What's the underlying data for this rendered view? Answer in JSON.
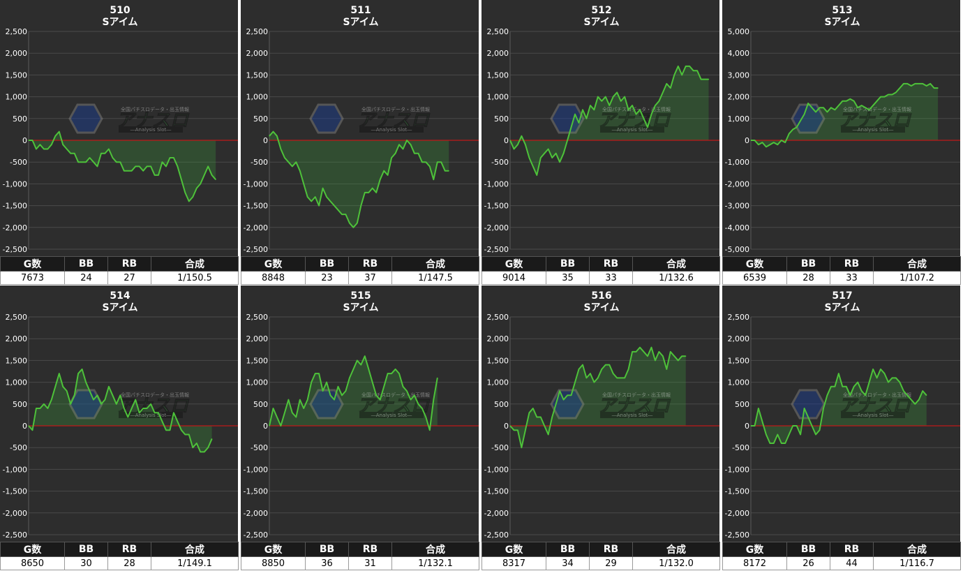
{
  "colors": {
    "panel_bg": "#2d2d2d",
    "grid": "#4a4a4a",
    "line": "#4ec23a",
    "fill": "rgba(60,160,60,0.28)",
    "zero_line": "#c01818",
    "header_bg": "#1a1a1a"
  },
  "headers": [
    "G数",
    "BB",
    "RB",
    "合成"
  ],
  "watermark": {
    "logo": "アナスロ",
    "tagline": "全国パチスロデータ・出玉情報",
    "sub": "―Analysis Slot―"
  },
  "chart_data": [
    {
      "type": "line",
      "title": "510",
      "subtitle": "Sアイム",
      "ylim": [
        -2500,
        2500
      ],
      "yticks": [
        "2,500",
        "2,000",
        "1,500",
        "1,000",
        "500",
        "0",
        "-500",
        "-1,000",
        "-1,500",
        "-2,000",
        "-2,500"
      ],
      "stats": {
        "g": "7673",
        "bb": "24",
        "rb": "27",
        "synth": "1/150.5"
      },
      "values": [
        0,
        0,
        -200,
        -100,
        -200,
        -200,
        -100,
        100,
        200,
        -100,
        -200,
        -300,
        -300,
        -500,
        -500,
        -500,
        -400,
        -500,
        -600,
        -300,
        -300,
        -200,
        -400,
        -500,
        -500,
        -700,
        -700,
        -700,
        -600,
        -600,
        -700,
        -600,
        -600,
        -800,
        -800,
        -500,
        -600,
        -400,
        -400,
        -600,
        -900,
        -1200,
        -1400,
        -1300,
        -1100,
        -1000,
        -800,
        -600,
        -800,
        -900
      ]
    },
    {
      "type": "line",
      "title": "511",
      "subtitle": "Sアイム",
      "ylim": [
        -2500,
        2500
      ],
      "yticks": [
        "2,500",
        "2,000",
        "1,500",
        "1,000",
        "500",
        "0",
        "-500",
        "-1,000",
        "-1,500",
        "-2,000",
        "-2,500"
      ],
      "stats": {
        "g": "8848",
        "bb": "23",
        "rb": "37",
        "synth": "1/147.5"
      },
      "values": [
        100,
        200,
        100,
        -200,
        -400,
        -500,
        -600,
        -500,
        -700,
        -1000,
        -1300,
        -1400,
        -1300,
        -1500,
        -1100,
        -1300,
        -1400,
        -1500,
        -1600,
        -1700,
        -1700,
        -1900,
        -2000,
        -1900,
        -1500,
        -1200,
        -1200,
        -1100,
        -1200,
        -900,
        -700,
        -800,
        -400,
        -300,
        -100,
        -200,
        0,
        -100,
        -300,
        -300,
        -500,
        -500,
        -600,
        -900,
        -500,
        -500,
        -700,
        -700
      ]
    },
    {
      "type": "line",
      "title": "512",
      "subtitle": "Sアイム",
      "ylim": [
        -2500,
        2500
      ],
      "yticks": [
        "2,500",
        "2,000",
        "1,500",
        "1,000",
        "500",
        "0",
        "-500",
        "-1,000",
        "-1,500",
        "-2,000",
        "-2,500"
      ],
      "stats": {
        "g": "9014",
        "bb": "35",
        "rb": "33",
        "synth": "1/132.6"
      },
      "values": [
        0,
        -200,
        -100,
        100,
        -100,
        -400,
        -600,
        -800,
        -400,
        -300,
        -200,
        -400,
        -300,
        -500,
        -300,
        0,
        300,
        600,
        400,
        700,
        500,
        800,
        700,
        1000,
        900,
        1000,
        800,
        1000,
        1100,
        900,
        1000,
        700,
        800,
        600,
        700,
        500,
        300,
        600,
        800,
        900,
        1100,
        1300,
        1200,
        1500,
        1700,
        1500,
        1700,
        1700,
        1600,
        1600,
        1400,
        1400,
        1400
      ]
    },
    {
      "type": "line",
      "title": "513",
      "subtitle": "Sアイム",
      "ylim": [
        -5000,
        5000
      ],
      "yticks": [
        "5,000",
        "4,000",
        "3,000",
        "2,000",
        "1,000",
        "0",
        "-1,000",
        "-2,000",
        "-3,000",
        "-4,000",
        "-5,000"
      ],
      "stats": {
        "g": "6539",
        "bb": "28",
        "rb": "33",
        "synth": "1/107.2"
      },
      "values": [
        0,
        0,
        -200,
        -100,
        -300,
        -200,
        -100,
        -200,
        0,
        -100,
        300,
        500,
        600,
        900,
        1200,
        1700,
        1500,
        1300,
        1500,
        1500,
        1300,
        1500,
        1400,
        1600,
        1800,
        1800,
        1900,
        1800,
        1500,
        1600,
        1500,
        1400,
        1600,
        1800,
        2000,
        2000,
        2100,
        2100,
        2200,
        2400,
        2600,
        2600,
        2500,
        2600,
        2600,
        2600,
        2500,
        2600,
        2400,
        2400
      ]
    },
    {
      "type": "line",
      "title": "514",
      "subtitle": "Sアイム",
      "ylim": [
        -2500,
        2500
      ],
      "yticks": [
        "2,500",
        "2,000",
        "1,500",
        "1,000",
        "500",
        "0",
        "-500",
        "-1,000",
        "-1,500",
        "-2,000",
        "-2,500"
      ],
      "stats": {
        "g": "8650",
        "bb": "30",
        "rb": "28",
        "synth": "1/149.1"
      },
      "values": [
        0,
        -100,
        400,
        400,
        500,
        400,
        600,
        900,
        1200,
        900,
        800,
        500,
        700,
        1200,
        1300,
        1000,
        800,
        600,
        700,
        500,
        600,
        900,
        700,
        500,
        700,
        400,
        200,
        400,
        600,
        300,
        400,
        400,
        500,
        300,
        300,
        100,
        -100,
        -100,
        300,
        100,
        -100,
        -200,
        -200,
        -500,
        -400,
        -600,
        -600,
        -500,
        -300
      ]
    },
    {
      "type": "line",
      "title": "515",
      "subtitle": "Sアイム",
      "ylim": [
        -2500,
        2500
      ],
      "yticks": [
        "2,500",
        "2,000",
        "1,500",
        "1,000",
        "500",
        "0",
        "-500",
        "-1,000",
        "-1,500",
        "-2,000",
        "-2,500"
      ],
      "stats": {
        "g": "8850",
        "bb": "36",
        "rb": "31",
        "synth": "1/132.1"
      },
      "values": [
        0,
        400,
        200,
        0,
        300,
        600,
        300,
        200,
        600,
        400,
        600,
        1000,
        1200,
        1200,
        800,
        1000,
        700,
        600,
        900,
        700,
        800,
        1100,
        1300,
        1500,
        1400,
        1600,
        1300,
        1000,
        700,
        600,
        900,
        1200,
        1200,
        1300,
        1200,
        900,
        800,
        600,
        700,
        500,
        400,
        200,
        -100,
        600,
        1100
      ]
    },
    {
      "type": "line",
      "title": "516",
      "subtitle": "Sアイム",
      "ylim": [
        -2500,
        2500
      ],
      "yticks": [
        "2,500",
        "2,000",
        "1,500",
        "1,000",
        "500",
        "0",
        "-500",
        "-1,000",
        "-1,500",
        "-2,000",
        "-2,500"
      ],
      "stats": {
        "g": "8317",
        "bb": "34",
        "rb": "29",
        "synth": "1/132.0"
      },
      "values": [
        0,
        -100,
        -100,
        -500,
        -100,
        300,
        400,
        200,
        200,
        0,
        -200,
        200,
        500,
        800,
        600,
        700,
        700,
        1000,
        1300,
        1400,
        1100,
        1200,
        1000,
        1100,
        1300,
        1400,
        1400,
        1200,
        1100,
        1100,
        1100,
        1300,
        1700,
        1700,
        1800,
        1700,
        1600,
        1800,
        1500,
        1700,
        1600,
        1300,
        1700,
        1600,
        1500,
        1600,
        1600
      ]
    },
    {
      "type": "line",
      "title": "517",
      "subtitle": "Sアイム",
      "ylim": [
        -2500,
        2500
      ],
      "yticks": [
        "2,500",
        "2,000",
        "1,500",
        "1,000",
        "500",
        "0",
        "-500",
        "-1,000",
        "-1,500",
        "-2,000",
        "-2,500"
      ],
      "stats": {
        "g": "8172",
        "bb": "26",
        "rb": "44",
        "synth": "1/116.7"
      },
      "values": [
        0,
        0,
        400,
        100,
        -200,
        -400,
        -400,
        -200,
        -400,
        -400,
        -200,
        0,
        0,
        -200,
        400,
        200,
        0,
        -200,
        -100,
        400,
        700,
        900,
        900,
        1200,
        900,
        900,
        700,
        900,
        1000,
        800,
        700,
        1000,
        1300,
        1100,
        1300,
        1200,
        1000,
        1100,
        1100,
        1000,
        800,
        700,
        600,
        500,
        600,
        800,
        700
      ]
    }
  ]
}
